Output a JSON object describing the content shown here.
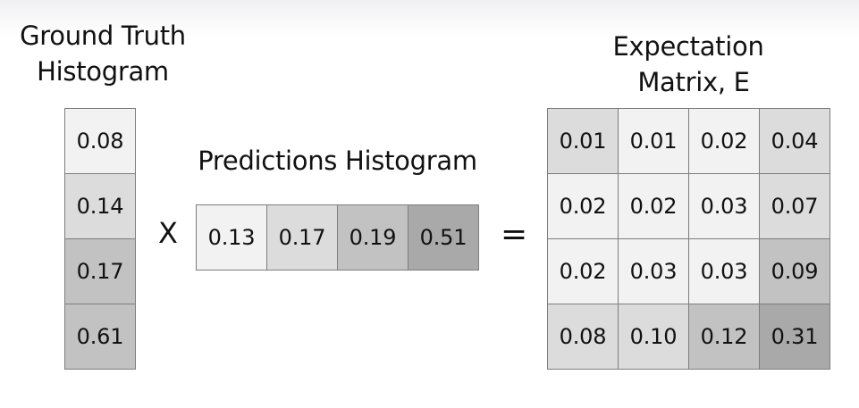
{
  "ground_truth": {
    "title_lines": [
      "Ground Truth",
      "Histogram"
    ],
    "values": [
      "0.08",
      "0.14",
      "0.17",
      "0.61"
    ]
  },
  "predictions": {
    "title": "Predictions Histogram",
    "values": [
      "0.13",
      "0.17",
      "0.19",
      "0.51"
    ]
  },
  "expectation": {
    "title_lines": [
      "Expectation",
      "Matrix, E"
    ],
    "rows": [
      [
        "0.01",
        "0.01",
        "0.02",
        "0.04"
      ],
      [
        "0.02",
        "0.02",
        "0.03",
        "0.07"
      ],
      [
        "0.02",
        "0.03",
        "0.03",
        "0.09"
      ],
      [
        "0.08",
        "0.10",
        "0.12",
        "0.31"
      ]
    ]
  },
  "operators": {
    "multiply": "X",
    "equals": "="
  },
  "colors": {
    "border": "#7d7d7d",
    "shade_1": "#f2f2f2",
    "shade_2": "#dcdcdc",
    "shade_3": "#c2c2c2",
    "shade_4": "#a9a9a9"
  }
}
